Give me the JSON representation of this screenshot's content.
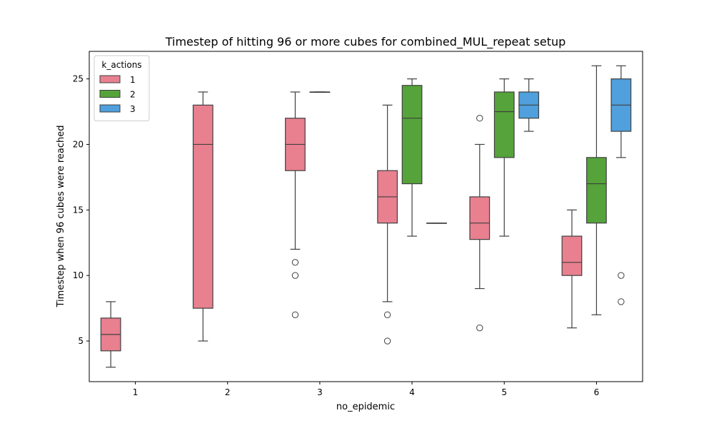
{
  "chart_data": {
    "type": "box",
    "title": "Timestep of hitting 96 or more cubes for combined_MUL_repeat setup",
    "xlabel": "no_epidemic",
    "ylabel": "Timestep when 96 cubes were reached",
    "categories": [
      "1",
      "2",
      "3",
      "4",
      "5",
      "6"
    ],
    "ylim": [
      1.9,
      27.1
    ],
    "yticks": [
      5,
      10,
      15,
      20,
      25
    ],
    "grid": false,
    "legend": {
      "title": "k_actions",
      "position": "top-left",
      "entries": [
        "1",
        "2",
        "3"
      ]
    },
    "series": [
      {
        "name": "1",
        "color": "#e8808f",
        "boxes": [
          {
            "category": "1",
            "whislo": 3,
            "q1": 4.25,
            "median": 5.5,
            "q3": 6.75,
            "whishi": 8,
            "fliers": []
          },
          {
            "category": "2",
            "whislo": 5,
            "q1": 7.5,
            "median": 20,
            "q3": 23,
            "whishi": 24,
            "fliers": []
          },
          {
            "category": "3",
            "whislo": 12,
            "q1": 18,
            "median": 20,
            "q3": 22,
            "whishi": 24,
            "fliers": [
              11,
              10,
              7
            ]
          },
          {
            "category": "4",
            "whislo": 8,
            "q1": 14,
            "median": 16,
            "q3": 18,
            "whishi": 23,
            "fliers": [
              7,
              5
            ]
          },
          {
            "category": "5",
            "whislo": 9,
            "q1": 12.75,
            "median": 14,
            "q3": 16,
            "whishi": 20,
            "fliers": [
              22,
              6
            ]
          },
          {
            "category": "6",
            "whislo": 6,
            "q1": 10,
            "median": 11,
            "q3": 13,
            "whishi": 15,
            "fliers": []
          }
        ]
      },
      {
        "name": "2",
        "color": "#55a33a",
        "boxes": [
          {
            "category": "3",
            "whislo": 24,
            "q1": 24,
            "median": 24,
            "q3": 24,
            "whishi": 24,
            "fliers": []
          },
          {
            "category": "4",
            "whislo": 13,
            "q1": 17,
            "median": 22,
            "q3": 24.5,
            "whishi": 25,
            "fliers": []
          },
          {
            "category": "5",
            "whislo": 13,
            "q1": 19,
            "median": 22.5,
            "q3": 24,
            "whishi": 25,
            "fliers": []
          },
          {
            "category": "6",
            "whislo": 7,
            "q1": 14,
            "median": 17,
            "q3": 19,
            "whishi": 26,
            "fliers": []
          }
        ]
      },
      {
        "name": "3",
        "color": "#4fa0dc",
        "boxes": [
          {
            "category": "4",
            "whislo": 14,
            "q1": 14,
            "median": 14,
            "q3": 14,
            "whishi": 14,
            "fliers": []
          },
          {
            "category": "5",
            "whislo": 21,
            "q1": 22,
            "median": 23,
            "q3": 24,
            "whishi": 25,
            "fliers": []
          },
          {
            "category": "6",
            "whislo": 19,
            "q1": 21,
            "median": 23,
            "q3": 25,
            "whishi": 26,
            "fliers": [
              10,
              8
            ]
          }
        ]
      }
    ]
  }
}
